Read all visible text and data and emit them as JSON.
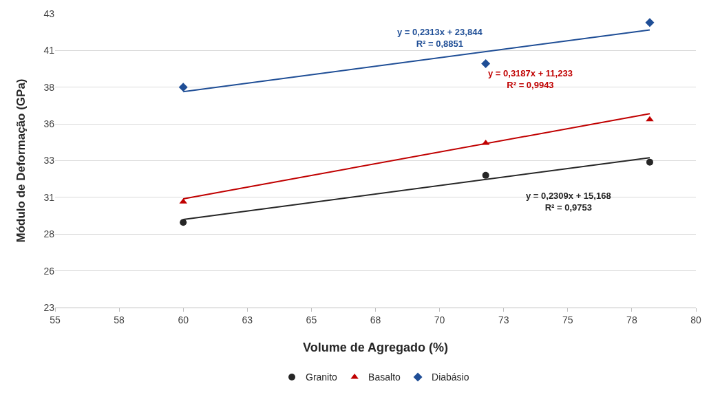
{
  "chart_data": {
    "type": "scatter",
    "xlabel": "Volume de Agregado (%)",
    "ylabel": "Módulo de Deformação (GPa)",
    "xlim": [
      55,
      80
    ],
    "xticks": [
      55,
      {
        "value": 57.5,
        "label": "58"
      },
      60,
      {
        "value": 62.5,
        "label": "63"
      },
      65,
      {
        "value": 67.5,
        "label": "68"
      },
      70,
      {
        "value": 72.5,
        "label": "73"
      },
      75,
      {
        "value": 77.5,
        "label": "78"
      },
      80
    ],
    "ylim": [
      23,
      43
    ],
    "yticks": [
      23,
      {
        "value": 25.5,
        "label": "26"
      },
      28,
      {
        "value": 30.5,
        "label": "31"
      },
      33,
      {
        "value": 35.5,
        "label": "36"
      },
      38,
      {
        "value": 40.5,
        "label": "41"
      },
      43
    ],
    "grid": "y",
    "legend": "bottom",
    "series": [
      {
        "name": "Granito",
        "marker": "circle",
        "color": "#262626",
        "x": [
          60,
          71.8,
          78.2
        ],
        "values": [
          28.8,
          32.0,
          32.9
        ]
      },
      {
        "name": "Basalto",
        "marker": "triangle",
        "color": "#c00000",
        "x": [
          60,
          71.8,
          78.2
        ],
        "values": [
          30.2,
          34.2,
          35.8
        ]
      },
      {
        "name": "Diabásio",
        "marker": "diamond",
        "color": "#1f4e96",
        "x": [
          60,
          71.8,
          78.2
        ],
        "values": [
          38.0,
          39.6,
          42.4
        ]
      },
      {
        "type": "line",
        "marker": "none",
        "color": "#262626",
        "x": [
          60,
          78.2
        ],
        "values": [
          29.0,
          33.2
        ]
      },
      {
        "type": "line",
        "marker": "none",
        "color": "#c00000",
        "x": [
          60,
          78.2
        ],
        "values": [
          30.4,
          36.2
        ]
      },
      {
        "type": "line",
        "marker": "none",
        "color": "#1f4e96",
        "x": [
          60,
          78.2
        ],
        "values": [
          37.7,
          41.9
        ]
      }
    ],
    "annotations": [
      "y = 0,2309x + 15,168\nR² = 0,9753",
      "y = 0,3187x + 11,233\nR² = 0,9943",
      "y = 0,2313x + 23,844\nR² = 0,8851"
    ]
  }
}
